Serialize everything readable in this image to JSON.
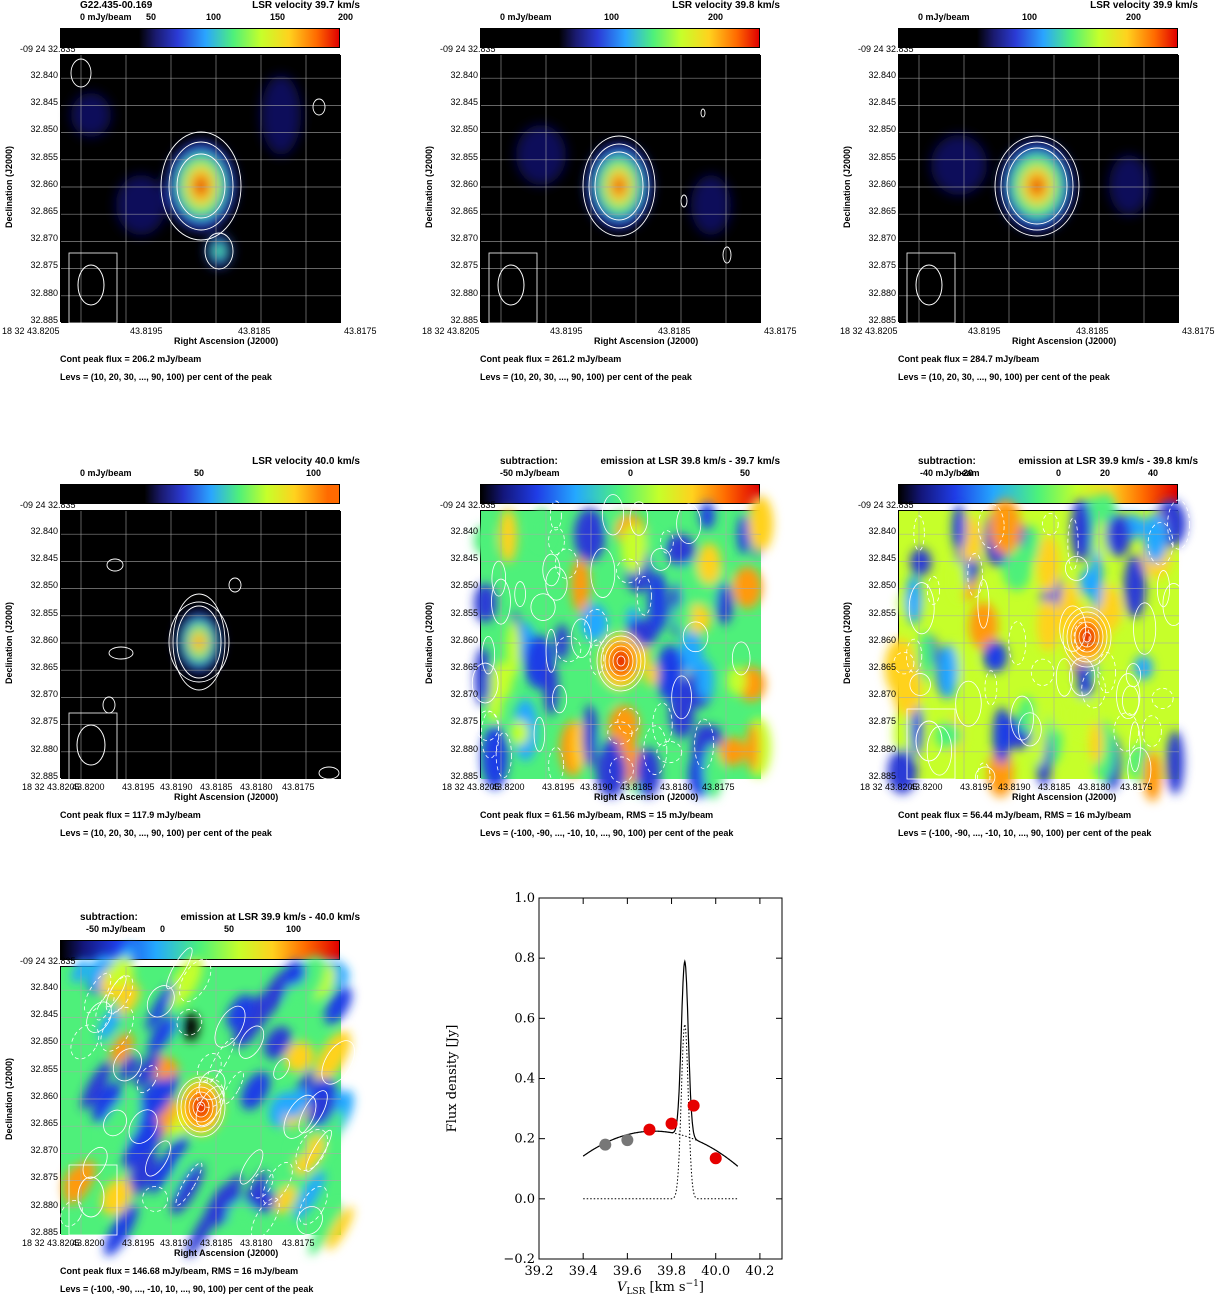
{
  "panels": [
    {
      "title": "G22.435-00.169",
      "velocity": "LSR velocity 39.7 km/s",
      "cbar_ticks": [
        "0 mJy/beam",
        "50",
        "100",
        "150",
        "200"
      ],
      "dec_top": "-09 24 32.835",
      "dec_ticks": [
        "32.840",
        "32.845",
        "32.850",
        "32.855",
        "32.860",
        "32.865",
        "32.870",
        "32.875",
        "32.880",
        "32.885"
      ],
      "ra_ticks": [
        "18 32 43.8205",
        "43.8195",
        "43.8185",
        "43.8175"
      ],
      "ylabel": "Declination (J2000)",
      "xlabel": "Right Ascension (J2000)",
      "cap1": "Cont peak flux =  206.2 mJy/beam",
      "cap2": "Levs = (10, 20, 30, ..., 90, 100) per cent of the peak"
    },
    {
      "title": "",
      "velocity": "LSR velocity 39.8 km/s",
      "cbar_ticks": [
        "0 mJy/beam",
        "100",
        "200"
      ],
      "dec_top": "-09 24 32.835",
      "dec_ticks": [
        "32.840",
        "32.845",
        "32.850",
        "32.855",
        "32.860",
        "32.865",
        "32.870",
        "32.875",
        "32.880",
        "32.885"
      ],
      "ra_ticks": [
        "18 32 43.8205",
        "43.8195",
        "43.8185",
        "43.8175"
      ],
      "ylabel": "Declination (J2000)",
      "xlabel": "Right Ascension (J2000)",
      "cap1": "Cont peak flux =  261.2 mJy/beam",
      "cap2": "Levs = (10, 20, 30, ..., 90, 100) per cent of the peak"
    },
    {
      "title": "",
      "velocity": "LSR velocity 39.9 km/s",
      "cbar_ticks": [
        "0 mJy/beam",
        "100",
        "200"
      ],
      "dec_top": "-09 24 32.835",
      "dec_ticks": [
        "32.840",
        "32.845",
        "32.850",
        "32.855",
        "32.860",
        "32.865",
        "32.870",
        "32.875",
        "32.880",
        "32.885"
      ],
      "ra_ticks": [
        "18 32 43.8205",
        "43.8195",
        "43.8185",
        "43.8175"
      ],
      "ylabel": "Declination (J2000)",
      "xlabel": "Right Ascension (J2000)",
      "cap1": "Cont peak flux =  284.7 mJy/beam",
      "cap2": "Levs = (10, 20, 30, ..., 90, 100) per cent of the peak"
    },
    {
      "title": "",
      "velocity": "LSR velocity 40.0 km/s",
      "cbar_ticks": [
        "0 mJy/beam",
        "50",
        "100"
      ],
      "dec_top": "-09 24 32.835",
      "dec_ticks": [
        "32.840",
        "32.845",
        "32.850",
        "32.855",
        "32.860",
        "32.865",
        "32.870",
        "32.875",
        "32.880",
        "32.885"
      ],
      "ra_ticks": [
        "18 32 43.8205",
        "43.8200",
        "43.8195",
        "43.8190",
        "43.8185",
        "43.8180",
        "43.8175"
      ],
      "ylabel": "Declination (J2000)",
      "xlabel": "Right Ascension (J2000)",
      "cap1": "Cont peak flux =  117.9 mJy/beam",
      "cap2": "Levs = (10, 20, 30, ..., 90, 100) per cent of the peak"
    },
    {
      "title": "subtraction:",
      "velocity": "emission at LSR 39.8 km/s - 39.7 km/s",
      "cbar_ticks": [
        "-50 mJy/beam",
        "0",
        "50"
      ],
      "dec_top": "-09 24 32.835",
      "dec_ticks": [
        "32.840",
        "32.845",
        "32.850",
        "32.855",
        "32.860",
        "32.865",
        "32.870",
        "32.875",
        "32.880",
        "32.885"
      ],
      "ra_ticks": [
        "18 32 43.8205",
        "43.8200",
        "43.8195",
        "43.8190",
        "43.8185",
        "43.8180",
        "43.8175"
      ],
      "ylabel": "Declination (J2000)",
      "xlabel": "Right Ascension (J2000)",
      "cap1": "Cont peak flux = 61.56 mJy/beam,      RMS = 15 mJy/beam",
      "cap2": "Levs = (-100, -90, ..., -10, 10, ..., 90, 100) per cent of the peak"
    },
    {
      "title": "subtraction:",
      "velocity": "emission at LSR 39.9 km/s - 39.8 km/s",
      "cbar_ticks": [
        "-40 mJy/beam",
        "-20",
        "0",
        "20",
        "40"
      ],
      "dec_top": "-09 24 32.835",
      "dec_ticks": [
        "32.840",
        "32.845",
        "32.850",
        "32.855",
        "32.860",
        "32.865",
        "32.870",
        "32.875",
        "32.880",
        "32.885"
      ],
      "ra_ticks": [
        "18 32 43.8205",
        "43.8200",
        "43.8195",
        "43.8190",
        "43.8185",
        "43.8180",
        "43.8175"
      ],
      "ylabel": "Declination (J2000)",
      "xlabel": "Right Ascension (J2000)",
      "cap1": "Cont peak flux = 56.44 mJy/beam,      RMS = 16 mJy/beam",
      "cap2": "Levs = (-100, -90, ..., -10, 10, ..., 90, 100) per cent of the peak"
    },
    {
      "title": "subtraction:",
      "velocity": "emission at LSR 39.9 km/s - 40.0 km/s",
      "cbar_ticks": [
        "-50 mJy/beam",
        "0",
        "50",
        "100"
      ],
      "dec_top": "-09 24 32.835",
      "dec_ticks": [
        "32.840",
        "32.845",
        "32.850",
        "32.855",
        "32.860",
        "32.865",
        "32.870",
        "32.875",
        "32.880",
        "32.885"
      ],
      "ra_ticks": [
        "18 32 43.8205",
        "43.8200",
        "43.8195",
        "43.8190",
        "43.8185",
        "43.8180",
        "43.8175"
      ],
      "ylabel": "Declination (J2000)",
      "xlabel": "Right Ascension (J2000)",
      "cap1": "Cont peak flux = 146.68 mJy/beam,      RMS = 16 mJy/beam",
      "cap2": "Levs = (-100, -90, ..., -10, 10, ..., 90, 100) per cent of the peak"
    }
  ],
  "chart_data": {
    "type": "line",
    "title": "",
    "xlabel": "V",
    "xlabel_sub": "LSR",
    "xlabel_unit": " [km s",
    "xlabel_sup": "−1",
    "xlabel_end": "]",
    "ylabel": "Flux density [Jy]",
    "xlim": [
      39.2,
      40.3
    ],
    "ylim": [
      -0.2,
      1.0
    ],
    "x_ticks": [
      "39.2",
      "39.4",
      "39.6",
      "39.8",
      "40.0",
      "40.2"
    ],
    "y_ticks": [
      "−0.2",
      "0.0",
      "0.2",
      "0.4",
      "0.6",
      "0.8",
      "1.0"
    ],
    "series": [
      {
        "style": "gray-points",
        "x": [
          39.5,
          39.6
        ],
        "y": [
          0.18,
          0.195
        ]
      },
      {
        "style": "red-points",
        "x": [
          39.7,
          39.8,
          39.9,
          40.0
        ],
        "y": [
          0.23,
          0.25,
          0.31,
          0.135
        ]
      },
      {
        "style": "solid-model",
        "x_range": [
          39.4,
          40.1
        ]
      },
      {
        "style": "dotted-components",
        "x_range": [
          39.4,
          40.1
        ]
      }
    ]
  }
}
